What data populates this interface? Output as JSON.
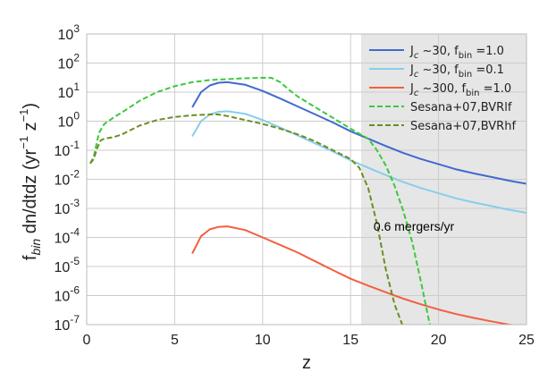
{
  "chart_data": {
    "type": "line",
    "xlabel": "z",
    "ylabel_parts": {
      "f": "f",
      "sub": "bin",
      "rest1": " dn/dtdz (yr",
      "sup1": "−1",
      "rest2": " z",
      "sup2": "−1",
      "rest3": ")"
    },
    "xlim": [
      0,
      25
    ],
    "ylim_log10": [
      -7,
      3
    ],
    "yscale": "log",
    "grid": true,
    "legend_position": "top-right",
    "x_ticks": [
      "0",
      "5",
      "10",
      "15",
      "20",
      "25"
    ],
    "y_ticks": [
      {
        "base": "10",
        "exp": "-7"
      },
      {
        "base": "10",
        "exp": "-6"
      },
      {
        "base": "10",
        "exp": "-5"
      },
      {
        "base": "10",
        "exp": "-4"
      },
      {
        "base": "10",
        "exp": "-3"
      },
      {
        "base": "10",
        "exp": "-2"
      },
      {
        "base": "10",
        "exp": "-1"
      },
      {
        "base": "10",
        "exp": "0"
      },
      {
        "base": "10",
        "exp": "1"
      },
      {
        "base": "10",
        "exp": "2"
      },
      {
        "base": "10",
        "exp": "3"
      }
    ],
    "shaded_region": {
      "x_start": 15.6,
      "x_end": 25,
      "color": "#e6e6e6"
    },
    "annotation": {
      "text": "0.6 mergers/yr",
      "x": 18.6,
      "y": 0.00017
    },
    "series": [
      {
        "legend": {
          "main": "J",
          "sub": "c",
          "rest": " ~30, f",
          "sub2": "bin",
          "eq": " =1.0"
        },
        "color": "#4169cf",
        "dash": "solid",
        "points": [
          [
            6.0,
            3.0
          ],
          [
            6.5,
            10.0
          ],
          [
            7.0,
            17.0
          ],
          [
            7.5,
            21.0
          ],
          [
            8.0,
            22.0
          ],
          [
            9.0,
            18.0
          ],
          [
            10.0,
            11.0
          ],
          [
            11.0,
            6.0
          ],
          [
            12.0,
            3.2
          ],
          [
            13.0,
            1.7
          ],
          [
            14.0,
            0.9
          ],
          [
            15.0,
            0.45
          ],
          [
            16.0,
            0.25
          ],
          [
            17.0,
            0.14
          ],
          [
            18.0,
            0.08
          ],
          [
            19.0,
            0.05
          ],
          [
            20.0,
            0.033
          ],
          [
            21.0,
            0.022
          ],
          [
            22.0,
            0.016
          ],
          [
            23.0,
            0.012
          ],
          [
            24.0,
            0.009
          ],
          [
            25.0,
            0.007
          ]
        ]
      },
      {
        "legend": {
          "main": "J",
          "sub": "c",
          "rest": " ~30, f",
          "sub2": "bin",
          "eq": " =0.1"
        },
        "color": "#87ceeb",
        "dash": "solid",
        "points": [
          [
            6.0,
            0.3
          ],
          [
            6.5,
            1.0
          ],
          [
            7.0,
            1.7
          ],
          [
            7.5,
            2.1
          ],
          [
            8.0,
            2.2
          ],
          [
            9.0,
            1.8
          ],
          [
            10.0,
            1.1
          ],
          [
            11.0,
            0.6
          ],
          [
            12.0,
            0.32
          ],
          [
            13.0,
            0.17
          ],
          [
            14.0,
            0.09
          ],
          [
            15.0,
            0.045
          ],
          [
            16.0,
            0.025
          ],
          [
            17.0,
            0.014
          ],
          [
            18.0,
            0.008
          ],
          [
            19.0,
            0.005
          ],
          [
            20.0,
            0.0033
          ],
          [
            21.0,
            0.0022
          ],
          [
            22.0,
            0.0016
          ],
          [
            23.0,
            0.0012
          ],
          [
            24.0,
            0.0009
          ],
          [
            25.0,
            0.0007
          ]
        ]
      },
      {
        "legend": {
          "main": "J",
          "sub": "c",
          "rest": " ~300, f",
          "sub2": "bin",
          "eq": " =1.0"
        },
        "color": "#f2603f",
        "dash": "solid",
        "points": [
          [
            6.0,
            2.8e-05
          ],
          [
            6.5,
            0.00011
          ],
          [
            7.0,
            0.00019
          ],
          [
            7.5,
            0.00023
          ],
          [
            8.0,
            0.00024
          ],
          [
            9.0,
            0.00018
          ],
          [
            10.0,
            0.0001
          ],
          [
            11.0,
            5.5e-05
          ],
          [
            12.0,
            3e-05
          ],
          [
            13.0,
            1.5e-05
          ],
          [
            14.0,
            7.5e-06
          ],
          [
            15.0,
            3.8e-06
          ],
          [
            16.0,
            2.2e-06
          ],
          [
            17.0,
            1.3e-06
          ],
          [
            18.0,
            7.8e-07
          ],
          [
            19.0,
            5e-07
          ],
          [
            20.0,
            3.3e-07
          ],
          [
            21.0,
            2.3e-07
          ],
          [
            22.0,
            1.7e-07
          ],
          [
            23.0,
            1.3e-07
          ],
          [
            24.0,
            1e-07
          ],
          [
            24.6,
            9e-08
          ]
        ]
      },
      {
        "legend": {
          "main": "Sesana+07,BVRlf"
        },
        "color": "#3cc93c",
        "dash": "dashed",
        "points": [
          [
            0.2,
            0.035
          ],
          [
            0.4,
            0.06
          ],
          [
            0.7,
            0.4
          ],
          [
            1.0,
            0.8
          ],
          [
            1.5,
            1.3
          ],
          [
            2.0,
            2.0
          ],
          [
            3.0,
            5.0
          ],
          [
            4.0,
            10.0
          ],
          [
            5.0,
            16.0
          ],
          [
            6.0,
            22.0
          ],
          [
            7.0,
            26.0
          ],
          [
            8.0,
            28.0
          ],
          [
            9.0,
            30.0
          ],
          [
            10.0,
            31.0
          ],
          [
            10.5,
            31.0
          ],
          [
            11.0,
            22.0
          ],
          [
            11.5,
            12.0
          ],
          [
            12.0,
            7.0
          ],
          [
            13.0,
            3.0
          ],
          [
            14.0,
            1.3
          ],
          [
            15.0,
            0.55
          ],
          [
            16.0,
            0.25
          ],
          [
            16.5,
            0.1
          ],
          [
            17.0,
            0.03
          ],
          [
            17.5,
            0.006
          ],
          [
            18.0,
            0.0008
          ],
          [
            18.5,
            7e-05
          ],
          [
            19.0,
            3e-06
          ],
          [
            19.5,
            1e-07
          ]
        ]
      },
      {
        "legend": {
          "main": "Sesana+07,BVRhf"
        },
        "color": "#6b8e23",
        "dash": "dashed",
        "points": [
          [
            0.2,
            0.035
          ],
          [
            0.4,
            0.05
          ],
          [
            0.6,
            0.12
          ],
          [
            0.8,
            0.22
          ],
          [
            1.0,
            0.25
          ],
          [
            1.5,
            0.28
          ],
          [
            2.0,
            0.35
          ],
          [
            3.0,
            0.7
          ],
          [
            4.0,
            1.1
          ],
          [
            5.0,
            1.4
          ],
          [
            6.0,
            1.6
          ],
          [
            7.0,
            1.7
          ],
          [
            7.5,
            1.7
          ],
          [
            8.0,
            1.5
          ],
          [
            9.0,
            1.1
          ],
          [
            10.0,
            0.8
          ],
          [
            11.0,
            0.55
          ],
          [
            12.0,
            0.35
          ],
          [
            13.0,
            0.2
          ],
          [
            14.0,
            0.1
          ],
          [
            15.0,
            0.05
          ],
          [
            15.5,
            0.025
          ],
          [
            16.0,
            0.005
          ],
          [
            16.5,
            0.0003
          ],
          [
            17.0,
            8e-06
          ],
          [
            17.5,
            5e-07
          ],
          [
            18.0,
            8e-08
          ]
        ]
      }
    ]
  }
}
